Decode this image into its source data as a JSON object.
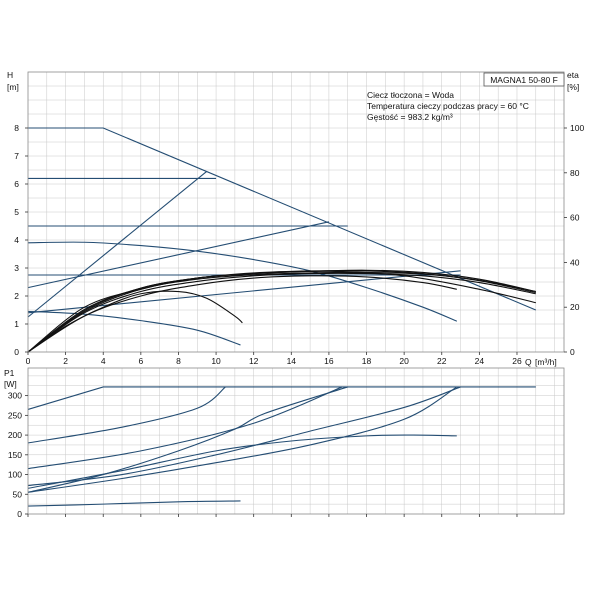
{
  "chart_data": [
    {
      "type": "line",
      "title": "MAGNA1 50-80 F",
      "info": [
        "Ciecz tłoczona = Woda",
        "Temperatura cieczy podczas pracy = 60 °C",
        "Gęstość = 983.2 kg/m³"
      ],
      "ylabel": "H",
      "yunit": "[m]",
      "y2label": "eta",
      "y2unit": "[%]",
      "xlabel": "Q",
      "xunit": "[m³/h]",
      "xlim": [
        0,
        28.5
      ],
      "ylim": [
        0,
        10
      ],
      "y2lim": [
        0,
        125
      ],
      "xticks": [
        0,
        2,
        4,
        6,
        8,
        10,
        12,
        14,
        16,
        18,
        20,
        22,
        24,
        26
      ],
      "yticks": [
        0,
        1,
        2,
        3,
        4,
        5,
        6,
        7,
        8
      ],
      "y2ticks": [
        0,
        20,
        40,
        60,
        80,
        100
      ],
      "grid": true,
      "head_curves": [
        [
          [
            0,
            8.0
          ],
          [
            4.0,
            8.0
          ],
          [
            27.0,
            1.5
          ]
        ],
        [
          [
            0,
            6.2
          ],
          [
            10.0,
            6.2
          ]
        ],
        [
          [
            0,
            4.5
          ],
          [
            17.0,
            4.5
          ]
        ],
        [
          [
            0,
            2.75
          ],
          [
            23.0,
            2.75
          ]
        ],
        [
          [
            0,
            1.25
          ],
          [
            9.5,
            6.45
          ]
        ],
        [
          [
            0,
            2.3
          ],
          [
            16.0,
            4.65
          ]
        ],
        [
          [
            0,
            1.4
          ],
          [
            23.0,
            2.9
          ]
        ],
        [
          [
            0,
            3.9
          ],
          [
            3.0,
            3.92
          ],
          [
            6.0,
            3.8
          ],
          [
            9.0,
            3.6
          ],
          [
            12.0,
            3.3
          ],
          [
            15.0,
            2.9
          ],
          [
            18.0,
            2.3
          ],
          [
            21.0,
            1.6
          ],
          [
            22.8,
            1.1
          ]
        ],
        [
          [
            0,
            1.45
          ],
          [
            3.0,
            1.35
          ],
          [
            6.0,
            1.12
          ],
          [
            9.0,
            0.78
          ],
          [
            11.3,
            0.25
          ]
        ]
      ],
      "eta_curves": [
        [
          [
            0,
            0
          ],
          [
            2.0,
            11.5
          ],
          [
            4.0,
            20
          ],
          [
            6.0,
            26
          ],
          [
            8.0,
            27
          ],
          [
            9.5,
            24
          ],
          [
            11.0,
            16
          ],
          [
            11.4,
            13
          ]
        ],
        [
          [
            0,
            0
          ],
          [
            3.0,
            19
          ],
          [
            6.0,
            28.5
          ],
          [
            9.0,
            33
          ],
          [
            12.0,
            35
          ],
          [
            15.0,
            36
          ],
          [
            18.0,
            36.5
          ],
          [
            21.0,
            35.5
          ],
          [
            24.0,
            32.5
          ],
          [
            27.0,
            27
          ]
        ],
        [
          [
            0,
            0
          ],
          [
            3.0,
            16
          ],
          [
            6.0,
            25
          ],
          [
            9.0,
            30
          ],
          [
            12.0,
            33
          ],
          [
            15.0,
            34
          ],
          [
            18.0,
            33.5
          ],
          [
            21.0,
            31
          ],
          [
            22.8,
            28
          ]
        ],
        [
          [
            0,
            0
          ],
          [
            3.0,
            17.5
          ],
          [
            6.0,
            27
          ],
          [
            9.0,
            31.5
          ],
          [
            12.0,
            34
          ],
          [
            15.0,
            35
          ],
          [
            18.0,
            35
          ],
          [
            21.0,
            34
          ],
          [
            24.0,
            31
          ],
          [
            27.0,
            26
          ]
        ],
        [
          [
            0,
            0
          ],
          [
            3.0,
            18
          ],
          [
            6.0,
            28
          ],
          [
            9.0,
            32.5
          ],
          [
            12.0,
            34.5
          ],
          [
            15.0,
            35.3
          ],
          [
            18.0,
            35.5
          ],
          [
            21.0,
            34.8
          ],
          [
            24.0,
            32
          ],
          [
            27.0,
            27
          ]
        ],
        [
          [
            0,
            0
          ],
          [
            3.0,
            18.5
          ],
          [
            6.0,
            28.5
          ],
          [
            9.0,
            33
          ],
          [
            12.0,
            35.3
          ],
          [
            15.0,
            36.2
          ],
          [
            18.0,
            36.2
          ],
          [
            21.0,
            35
          ],
          [
            24.0,
            31.8
          ],
          [
            27.0,
            26.5
          ]
        ],
        [
          [
            0,
            0
          ],
          [
            3.0,
            20
          ],
          [
            6.0,
            28
          ],
          [
            9.0,
            33
          ],
          [
            12.0,
            35
          ],
          [
            16.0,
            36
          ],
          [
            20.0,
            34
          ],
          [
            24.0,
            28
          ],
          [
            27.0,
            22
          ]
        ]
      ]
    },
    {
      "type": "line",
      "ylabel": "P1",
      "yunit": "[W]",
      "xlim": [
        0,
        28.5
      ],
      "ylim": [
        0,
        370
      ],
      "xticks": [
        0,
        2,
        4,
        6,
        8,
        10,
        12,
        14,
        16,
        18,
        20,
        22,
        24,
        26
      ],
      "yticks": [
        0,
        50,
        100,
        150,
        200,
        250,
        300
      ],
      "grid": true,
      "power_curves": [
        [
          [
            0,
            265
          ],
          [
            4.0,
            322
          ],
          [
            27.0,
            322
          ]
        ],
        [
          [
            0,
            180
          ],
          [
            5.0,
            220
          ],
          [
            9.0,
            268
          ],
          [
            10.5,
            322
          ]
        ],
        [
          [
            0,
            115
          ],
          [
            6.0,
            160
          ],
          [
            12.0,
            230
          ],
          [
            16.7,
            322
          ]
        ],
        [
          [
            0,
            72
          ],
          [
            5.0,
            100
          ],
          [
            10.0,
            150
          ],
          [
            15.0,
            210
          ],
          [
            20.0,
            270
          ],
          [
            23.0,
            322
          ]
        ],
        [
          [
            0,
            55
          ],
          [
            4.0,
            100
          ],
          [
            8.0,
            160
          ],
          [
            11.0,
            215
          ],
          [
            12.6,
            255
          ],
          [
            17.0,
            322
          ]
        ],
        [
          [
            0,
            55
          ],
          [
            5.0,
            90
          ],
          [
            10.0,
            130
          ],
          [
            15.0,
            175
          ],
          [
            20.0,
            240
          ],
          [
            22.8,
            322
          ]
        ],
        [
          [
            0,
            65
          ],
          [
            5.0,
            110
          ],
          [
            10.0,
            160
          ],
          [
            14.0,
            185
          ],
          [
            18.0,
            198
          ],
          [
            20.5,
            200
          ],
          [
            22.8,
            198
          ]
        ],
        [
          [
            0,
            20
          ],
          [
            4.0,
            25
          ],
          [
            8.0,
            31
          ],
          [
            11.3,
            33
          ]
        ]
      ]
    }
  ],
  "colors": {
    "blue": "#244d73",
    "black": "#111111",
    "grid": "#c8c8c8",
    "frame": "#8a8a8a"
  }
}
